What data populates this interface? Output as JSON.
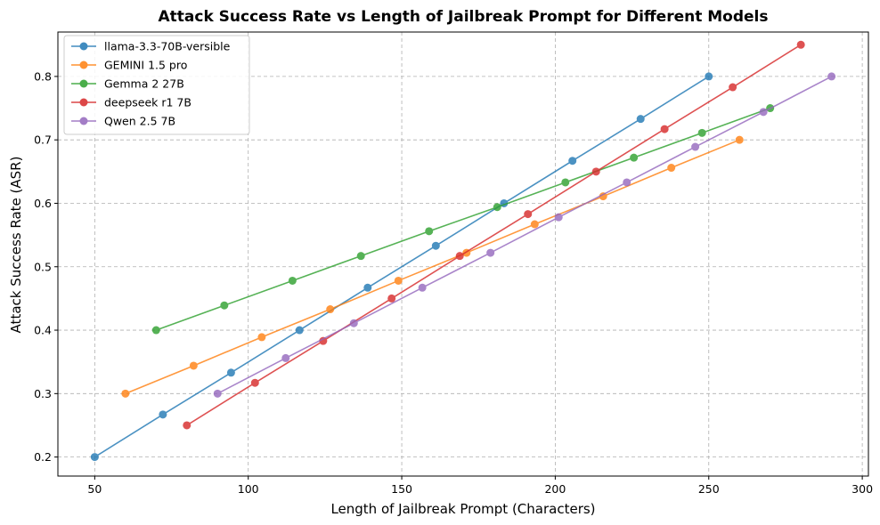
{
  "chart_data": {
    "type": "line",
    "title": "Attack Success Rate vs Length of Jailbreak Prompt for Different Models",
    "xlabel": "Length of Jailbreak Prompt (Characters)",
    "ylabel": "Attack Success Rate (ASR)",
    "xlim": [
      38,
      302
    ],
    "ylim": [
      0.17,
      0.87
    ],
    "xticks": [
      50,
      100,
      150,
      200,
      250,
      300
    ],
    "yticks": [
      0.2,
      0.3,
      0.4,
      0.5,
      0.6,
      0.7,
      0.8
    ],
    "grid": true,
    "legend_position": "top-left",
    "series": [
      {
        "name": "llama-3.3-70B-versible",
        "color": "#1f77b4",
        "x": [
          50,
          72.2,
          94.4,
          116.7,
          138.9,
          161.1,
          183.3,
          205.6,
          227.8,
          250
        ],
        "y": [
          0.2,
          0.267,
          0.333,
          0.4,
          0.467,
          0.533,
          0.6,
          0.667,
          0.733,
          0.8
        ]
      },
      {
        "name": "GEMINI 1.5 pro",
        "color": "#ff7f0e",
        "x": [
          60,
          82.2,
          104.4,
          126.7,
          148.9,
          171.1,
          193.3,
          215.6,
          237.8,
          260
        ],
        "y": [
          0.3,
          0.344,
          0.389,
          0.433,
          0.478,
          0.522,
          0.567,
          0.611,
          0.656,
          0.7
        ]
      },
      {
        "name": "Gemma 2 27B",
        "color": "#2ca02c",
        "x": [
          70,
          92.2,
          114.4,
          136.7,
          158.9,
          181.1,
          203.3,
          225.6,
          247.8,
          270
        ],
        "y": [
          0.4,
          0.439,
          0.478,
          0.517,
          0.556,
          0.594,
          0.633,
          0.672,
          0.711,
          0.75
        ]
      },
      {
        "name": "deepseek r1 7B",
        "color": "#d62728",
        "x": [
          80,
          102.2,
          124.4,
          146.7,
          168.9,
          191.1,
          213.3,
          235.6,
          257.8,
          280
        ],
        "y": [
          0.25,
          0.317,
          0.383,
          0.45,
          0.517,
          0.583,
          0.65,
          0.717,
          0.783,
          0.85
        ]
      },
      {
        "name": "Qwen 2.5 7B",
        "color": "#9467bd",
        "x": [
          90,
          112.2,
          134.4,
          156.7,
          178.9,
          201.1,
          223.3,
          245.6,
          267.8,
          290
        ],
        "y": [
          0.3,
          0.356,
          0.411,
          0.467,
          0.522,
          0.578,
          0.633,
          0.689,
          0.744,
          0.8
        ]
      }
    ]
  }
}
